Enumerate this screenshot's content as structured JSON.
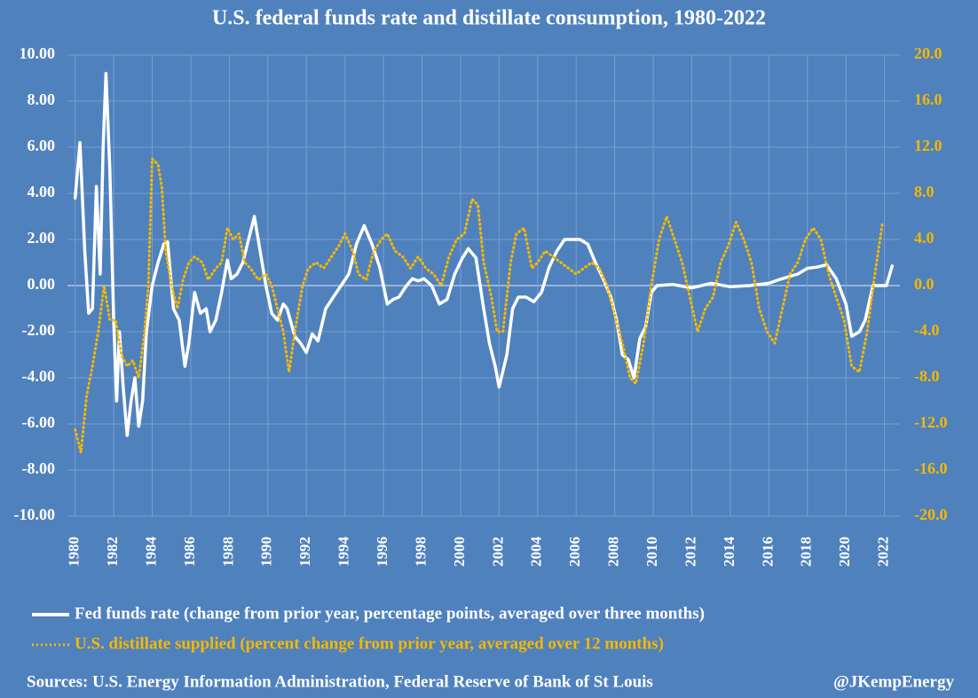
{
  "chart_data": {
    "type": "line",
    "title": "U.S. federal funds rate and distillate consumption, 1980-2022",
    "sources": "Sources: U.S. Energy Information Administration, Federal Reserve of Bank of St Louis",
    "handle": "@JKempEnergy",
    "xlim": [
      1979.6,
      2022.8
    ],
    "xticks": [
      1980,
      1982,
      1984,
      1986,
      1988,
      1990,
      1992,
      1994,
      1996,
      1998,
      2000,
      2002,
      2004,
      2006,
      2008,
      2010,
      2012,
      2014,
      2016,
      2018,
      2020,
      2022
    ],
    "ylim": [
      -10,
      10
    ],
    "yticks": [
      {
        "value": 10,
        "label": "10.00"
      },
      {
        "value": 8,
        "label": "8.00"
      },
      {
        "value": 6,
        "label": "6.00"
      },
      {
        "value": 4,
        "label": "4.00"
      },
      {
        "value": 2,
        "label": "2.00"
      },
      {
        "value": 0,
        "label": "0.00"
      },
      {
        "value": -2,
        "label": "-2.00"
      },
      {
        "value": -4,
        "label": "-4.00"
      },
      {
        "value": -6,
        "label": "-6.00"
      },
      {
        "value": -8,
        "label": "-8.00"
      },
      {
        "value": -10,
        "label": "-10.00"
      }
    ],
    "y2lim": [
      -20,
      20
    ],
    "y2ticks": [
      {
        "value": 20,
        "label": "20.0"
      },
      {
        "value": 16,
        "label": "16.0"
      },
      {
        "value": 12,
        "label": "12.0"
      },
      {
        "value": 8,
        "label": "8.0"
      },
      {
        "value": 4,
        "label": "4.0"
      },
      {
        "value": 0,
        "label": "0.0"
      },
      {
        "value": -4,
        "label": "-4.0"
      },
      {
        "value": -8,
        "label": "-8.0"
      },
      {
        "value": -12,
        "label": "-12.0"
      },
      {
        "value": -16,
        "label": "-16.0"
      },
      {
        "value": -20,
        "label": "-20.0"
      }
    ],
    "grid": true,
    "series": [
      {
        "name": "Fed funds rate (change from prior year, percentage points, averaged over three months)",
        "color": "#ffffff",
        "axis": "y",
        "x": [
          1980.0,
          1980.25,
          1980.5,
          1980.7,
          1980.9,
          1981.1,
          1981.3,
          1981.45,
          1981.6,
          1981.8,
          1982.0,
          1982.15,
          1982.3,
          1982.5,
          1982.7,
          1982.9,
          1983.1,
          1983.3,
          1983.5,
          1983.7,
          1984.0,
          1984.3,
          1984.6,
          1984.8,
          1985.1,
          1985.4,
          1985.7,
          1985.9,
          1986.2,
          1986.5,
          1986.8,
          1987.0,
          1987.3,
          1987.6,
          1987.9,
          1988.1,
          1988.4,
          1988.7,
          1989.0,
          1989.3,
          1989.6,
          1989.9,
          1990.2,
          1990.5,
          1990.8,
          1991.0,
          1991.4,
          1991.7,
          1992.0,
          1992.3,
          1992.6,
          1993.0,
          1993.4,
          1993.8,
          1994.2,
          1994.6,
          1995.0,
          1995.4,
          1995.8,
          1996.2,
          1996.5,
          1996.8,
          1997.2,
          1997.5,
          1997.8,
          1998.1,
          1998.5,
          1998.9,
          1999.3,
          1999.7,
          2000.1,
          2000.4,
          2000.8,
          2001.2,
          2001.5,
          2001.8,
          2002.0,
          2002.4,
          2002.7,
          2003.0,
          2003.4,
          2003.8,
          2004.2,
          2004.6,
          2005.0,
          2005.4,
          2005.8,
          2006.2,
          2006.6,
          2007.0,
          2007.4,
          2007.8,
          2008.1,
          2008.4,
          2008.7,
          2009.0,
          2009.3,
          2009.6,
          2009.9,
          2010.2,
          2011.0,
          2012.0,
          2013.0,
          2014.0,
          2015.0,
          2016.0,
          2016.5,
          2017.5,
          2018.0,
          2018.5,
          2019.0,
          2019.5,
          2020.0,
          2020.3,
          2020.7,
          2021.0,
          2021.4,
          2021.8,
          2022.1,
          2022.4
        ],
        "values": [
          3.8,
          6.2,
          1.5,
          -1.2,
          -1.0,
          4.3,
          0.5,
          6.0,
          9.2,
          5.0,
          -1.5,
          -5.0,
          -2.0,
          -4.5,
          -6.5,
          -5.0,
          -4.0,
          -6.1,
          -5.0,
          -2.0,
          0.0,
          1.0,
          1.8,
          1.9,
          -1.0,
          -1.5,
          -3.5,
          -2.5,
          -0.3,
          -1.2,
          -1.0,
          -2.0,
          -1.5,
          -0.3,
          1.1,
          0.3,
          0.5,
          1.0,
          2.0,
          3.0,
          1.5,
          0.0,
          -1.2,
          -1.5,
          -0.8,
          -1.0,
          -2.2,
          -2.5,
          -2.9,
          -2.1,
          -2.4,
          -1.0,
          -0.5,
          0.0,
          0.5,
          1.8,
          2.6,
          1.8,
          0.8,
          -0.8,
          -0.6,
          -0.5,
          0.0,
          0.3,
          0.2,
          0.3,
          0.0,
          -0.8,
          -0.6,
          0.5,
          1.2,
          1.6,
          1.2,
          -1.0,
          -2.5,
          -3.5,
          -4.4,
          -3.0,
          -1.0,
          -0.5,
          -0.5,
          -0.7,
          -0.3,
          0.8,
          1.5,
          2.0,
          2.0,
          2.0,
          1.8,
          1.0,
          0.3,
          -0.5,
          -1.5,
          -3.0,
          -3.2,
          -4.0,
          -2.3,
          -1.8,
          -0.3,
          0.0,
          0.05,
          -0.1,
          0.1,
          -0.05,
          0.0,
          0.1,
          0.25,
          0.5,
          0.75,
          0.8,
          0.9,
          0.3,
          -0.8,
          -2.2,
          -2.0,
          -1.5,
          0.0,
          0.0,
          0.0,
          0.85
        ]
      },
      {
        "name": "U.S. distillate supplied (percent change from prior year, averaged over 12 months)",
        "color": "#f5b800",
        "axis": "y2",
        "x": [
          1980.0,
          1980.3,
          1980.6,
          1980.9,
          1981.2,
          1981.5,
          1981.8,
          1982.1,
          1982.4,
          1982.7,
          1983.0,
          1983.3,
          1983.6,
          1983.8,
          1984.0,
          1984.3,
          1984.5,
          1984.7,
          1985.0,
          1985.3,
          1985.6,
          1985.9,
          1986.2,
          1986.6,
          1986.9,
          1987.3,
          1987.6,
          1987.9,
          1988.2,
          1988.5,
          1988.8,
          1989.1,
          1989.5,
          1989.9,
          1990.2,
          1990.5,
          1990.8,
          1991.1,
          1991.4,
          1991.8,
          1992.1,
          1992.5,
          1992.9,
          1993.3,
          1993.7,
          1994.0,
          1994.4,
          1994.7,
          1995.1,
          1995.5,
          1995.9,
          1996.2,
          1996.6,
          1997.0,
          1997.4,
          1997.8,
          1998.2,
          1998.6,
          1999.0,
          1999.4,
          1999.8,
          2000.2,
          2000.6,
          2000.9,
          2001.2,
          2001.6,
          2001.9,
          2002.2,
          2002.6,
          2002.9,
          2003.3,
          2003.7,
          2004.0,
          2004.4,
          2004.8,
          2005.2,
          2005.6,
          2006.0,
          2006.4,
          2006.8,
          2007.2,
          2007.6,
          2008.0,
          2008.4,
          2008.8,
          2009.1,
          2009.5,
          2009.9,
          2010.3,
          2010.7,
          2011.1,
          2011.5,
          2011.9,
          2012.3,
          2012.7,
          2013.1,
          2013.5,
          2013.9,
          2014.3,
          2014.7,
          2015.1,
          2015.5,
          2015.9,
          2016.3,
          2016.7,
          2017.1,
          2017.5,
          2017.9,
          2018.3,
          2018.7,
          2019.1,
          2019.5,
          2019.9,
          2020.3,
          2020.7,
          2021.1,
          2021.5,
          2021.9
        ],
        "values": [
          -12.5,
          -14.5,
          -9.5,
          -7,
          -4,
          0,
          -3,
          -3,
          -6,
          -7,
          -6.5,
          -8,
          -4,
          0,
          11,
          10.5,
          8.5,
          3,
          0,
          -2,
          0.5,
          2,
          2.5,
          2,
          0.5,
          1.5,
          2,
          5,
          4,
          4.5,
          2,
          1.5,
          0.5,
          1,
          0,
          -2,
          -4,
          -7.5,
          -4,
          0,
          1.5,
          2,
          1.5,
          2.5,
          3.5,
          4.5,
          3,
          1,
          0.5,
          3,
          4,
          4.5,
          3,
          2.5,
          1.5,
          2.5,
          1.5,
          1,
          0,
          2.5,
          4,
          4.5,
          7.5,
          7,
          2,
          -1,
          -4,
          -4,
          2,
          4.5,
          5,
          1.5,
          2,
          3,
          2.5,
          2,
          1.5,
          1,
          1.5,
          2,
          1.5,
          0,
          -2.5,
          -5,
          -8,
          -8.5,
          -5,
          0,
          4,
          6,
          4,
          2,
          -1,
          -4,
          -2,
          -1,
          2,
          3.5,
          5.5,
          4,
          2,
          -2,
          -4,
          -5,
          -2,
          1,
          2,
          4,
          5,
          4,
          1,
          -1,
          -3,
          -7,
          -7.5,
          -4,
          1,
          5.5
        ]
      }
    ]
  }
}
